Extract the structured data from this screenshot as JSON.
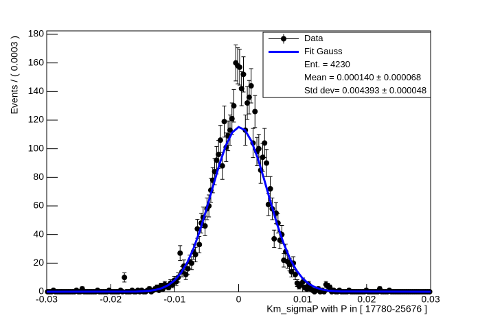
{
  "chart_data": {
    "type": "scatter",
    "xlabel": "Km_sigmaP with P in [ 17780-25676 ]",
    "ylabel": "Events / ( 0.0003 )",
    "xlim": [
      -0.03,
      0.03
    ],
    "ylim": [
      0,
      182.4
    ],
    "xticks": [
      -0.03,
      -0.02,
      -0.01,
      0,
      0.01,
      0.02,
      0.03
    ],
    "yticks": [
      0,
      20,
      40,
      60,
      80,
      100,
      120,
      140,
      160,
      180
    ],
    "legend_position": "upper right",
    "stats": [
      "Ent. = 4230",
      "Mean = 0.000140 ± 0.000068",
      "Std dev= 0.004393 ± 0.000048"
    ],
    "series": [
      {
        "name": "Data",
        "color": "#000000",
        "mode": "markers",
        "x": [
          -0.02985,
          -0.02955,
          -0.02925,
          -0.02895,
          -0.02865,
          -0.02835,
          -0.02805,
          -0.02775,
          -0.02745,
          -0.02715,
          -0.02685,
          -0.02655,
          -0.02625,
          -0.02595,
          -0.02565,
          -0.02535,
          -0.02505,
          -0.02475,
          -0.02445,
          -0.02415,
          -0.02385,
          -0.02355,
          -0.02325,
          -0.02295,
          -0.02265,
          -0.02235,
          -0.02205,
          -0.02175,
          -0.02145,
          -0.02115,
          -0.02085,
          -0.02055,
          -0.02025,
          -0.01995,
          -0.01965,
          -0.01935,
          -0.01905,
          -0.01875,
          -0.01845,
          -0.01815,
          -0.01785,
          -0.01755,
          -0.01725,
          -0.01695,
          -0.01665,
          -0.01635,
          -0.01605,
          -0.01575,
          -0.01545,
          -0.01515,
          -0.01485,
          -0.01455,
          -0.01425,
          -0.01395,
          -0.01365,
          -0.01335,
          -0.01305,
          -0.01275,
          -0.01245,
          -0.01215,
          -0.01185,
          -0.01155,
          -0.01125,
          -0.01095,
          -0.01065,
          -0.01035,
          -0.01005,
          -0.00975,
          -0.00945,
          -0.00915,
          -0.00885,
          -0.00855,
          -0.00825,
          -0.00795,
          -0.00765,
          -0.00735,
          -0.00705,
          -0.00675,
          -0.00645,
          -0.00615,
          -0.00585,
          -0.00555,
          -0.00525,
          -0.00495,
          -0.00465,
          -0.00435,
          -0.00405,
          -0.00375,
          -0.00345,
          -0.00315,
          -0.00285,
          -0.00255,
          -0.00225,
          -0.00195,
          -0.00165,
          -0.00135,
          -0.00105,
          -0.00075,
          -0.00045,
          -0.00015,
          0.00015,
          0.00045,
          0.00075,
          0.00105,
          0.00135,
          0.00165,
          0.00195,
          0.00225,
          0.00255,
          0.00285,
          0.00315,
          0.00345,
          0.00375,
          0.00405,
          0.00435,
          0.00465,
          0.00495,
          0.00525,
          0.00555,
          0.00585,
          0.00615,
          0.00645,
          0.00675,
          0.00705,
          0.00735,
          0.00765,
          0.00795,
          0.00825,
          0.00855,
          0.00885,
          0.00915,
          0.00945,
          0.00975,
          0.01005,
          0.01035,
          0.01065,
          0.01095,
          0.01125,
          0.01155,
          0.01185,
          0.01215,
          0.01245,
          0.01275,
          0.01305,
          0.01335,
          0.01365,
          0.01395,
          0.01425,
          0.01455,
          0.01485,
          0.01515,
          0.01545,
          0.01575,
          0.01605,
          0.01635,
          0.01665,
          0.01695,
          0.01725,
          0.01755,
          0.01785,
          0.01815,
          0.01845,
          0.01875,
          0.01905,
          0.01935,
          0.01965,
          0.01995,
          0.02025,
          0.02055,
          0.02085,
          0.02115,
          0.02145,
          0.02175,
          0.02205,
          0.02235,
          0.02265,
          0.02295,
          0.02325,
          0.02355,
          0.02385,
          0.02415,
          0.02445,
          0.02475,
          0.02505,
          0.02535,
          0.02565,
          0.02595,
          0.02625,
          0.02655,
          0.02685,
          0.02715,
          0.02745,
          0.02775,
          0.02805,
          0.02835,
          0.02865,
          0.02895,
          0.02925,
          0.02955,
          0.02985
        ],
        "values": [
          0,
          0,
          0,
          1,
          0,
          0,
          0,
          0,
          0,
          0,
          0,
          0,
          0,
          0,
          0,
          1,
          0,
          0,
          2,
          0,
          0,
          0,
          0,
          0,
          0,
          0,
          1,
          0,
          0,
          0,
          0,
          0,
          1,
          0,
          0,
          0,
          0,
          0,
          1,
          0,
          10,
          0,
          0,
          0,
          1,
          0,
          0,
          1,
          0,
          1,
          0,
          0,
          1,
          2,
          0,
          1,
          2,
          3,
          1,
          4,
          2,
          5,
          4,
          3,
          6,
          5,
          8,
          7,
          10,
          27,
          14,
          18,
          12,
          16,
          21,
          20,
          28,
          26,
          44,
          33,
          48,
          52,
          46,
          58,
          60,
          71,
          78,
          84,
          92,
          96,
          106,
          88,
          119,
          101,
          109,
          113,
          121,
          130,
          160,
          158,
          157,
          142,
          152,
          113,
          132,
          136,
          144,
          104,
          126,
          98,
          100,
          85,
          94,
          104,
          90,
          61,
          72,
          58,
          37,
          55,
          48,
          36,
          40,
          22,
          28,
          21,
          19,
          14,
          20,
          12,
          6,
          4,
          5,
          7,
          3,
          2,
          5,
          2,
          1,
          0,
          1,
          2,
          0,
          1,
          0,
          5,
          4,
          3,
          0,
          1,
          0,
          0,
          1,
          0,
          0,
          0,
          0,
          1,
          0,
          0,
          0,
          0,
          0,
          0,
          0,
          0,
          1,
          0,
          0,
          0,
          0,
          0,
          0,
          2,
          0,
          0,
          0,
          0,
          1,
          0,
          0,
          0,
          0,
          0,
          0,
          0,
          0,
          0,
          0,
          0,
          0,
          0,
          0,
          0,
          0,
          0,
          0,
          0,
          0,
          0
        ],
        "errors": [
          0,
          0,
          0,
          1,
          0,
          0,
          0,
          0,
          0,
          0,
          0,
          0,
          0,
          0,
          0,
          1,
          0,
          0,
          1.4,
          0,
          0,
          0,
          0,
          0,
          0,
          0,
          1,
          0,
          0,
          0,
          0,
          0,
          1,
          0,
          0,
          0,
          0,
          0,
          1,
          0,
          3.2,
          0,
          0,
          0,
          1,
          0,
          0,
          1,
          0,
          1,
          0,
          0,
          1,
          1.4,
          0,
          1,
          1.4,
          1.7,
          1,
          2,
          1.4,
          2.2,
          2,
          1.7,
          2.4,
          2.2,
          2.8,
          2.6,
          3.2,
          5.2,
          3.7,
          4.2,
          3.5,
          4,
          4.6,
          4.5,
          5.3,
          5.1,
          6.6,
          5.7,
          6.9,
          7.2,
          6.8,
          7.6,
          7.7,
          8.4,
          8.8,
          9.2,
          9.6,
          9.8,
          10.3,
          9.4,
          10.9,
          10,
          10.4,
          10.6,
          11,
          11.4,
          12.6,
          12.6,
          12.5,
          11.9,
          12.3,
          10.6,
          11.5,
          11.7,
          12,
          10.2,
          11.2,
          9.9,
          10,
          9.2,
          9.7,
          10.2,
          9.5,
          7.8,
          8.5,
          7.6,
          6.1,
          7.4,
          6.9,
          6,
          6.3,
          4.7,
          5.3,
          4.6,
          4.4,
          3.7,
          4.5,
          3.5,
          2.4,
          2,
          2.2,
          2.6,
          1.7,
          1.4,
          2.2,
          1.4,
          1,
          0,
          1,
          1.4,
          0,
          1,
          0,
          2.2,
          2,
          1.7,
          0,
          1,
          0,
          0,
          1,
          0,
          0,
          0,
          0,
          1,
          0,
          0,
          0,
          0,
          0,
          0,
          0,
          0,
          1,
          0,
          0,
          0,
          0,
          0,
          0,
          1.4,
          0,
          0,
          0,
          0,
          1,
          0,
          0,
          0,
          0,
          0,
          0,
          0,
          0,
          0,
          0,
          0,
          0,
          0,
          0,
          0,
          0,
          0,
          0,
          0,
          0,
          0
        ]
      },
      {
        "name": "Fit Gauss",
        "color": "#0000ff",
        "mode": "line",
        "x": [
          -0.03,
          -0.016,
          -0.015,
          -0.014,
          -0.013,
          -0.012,
          -0.011,
          -0.01,
          -0.009,
          -0.008,
          -0.007,
          -0.006,
          -0.005,
          -0.004,
          -0.003,
          -0.002,
          -0.001,
          0,
          0.001,
          0.002,
          0.003,
          0.004,
          0.005,
          0.006,
          0.007,
          0.008,
          0.009,
          0.01,
          0.011,
          0.012,
          0.013,
          0.014,
          0.015,
          0.016,
          0.03
        ],
        "values": [
          0,
          0.1,
          0.3,
          0.6,
          1.3,
          2.5,
          4.6,
          8.0,
          13.2,
          20.7,
          30.8,
          43.5,
          58.2,
          73.9,
          89.2,
          102.3,
          111.4,
          115.2,
          113.0,
          105.3,
          93.2,
          78.3,
          62.6,
          47.4,
          34.1,
          23.3,
          15.1,
          9.3,
          5.4,
          3.0,
          1.6,
          0.8,
          0.4,
          0.2,
          0
        ]
      }
    ]
  }
}
